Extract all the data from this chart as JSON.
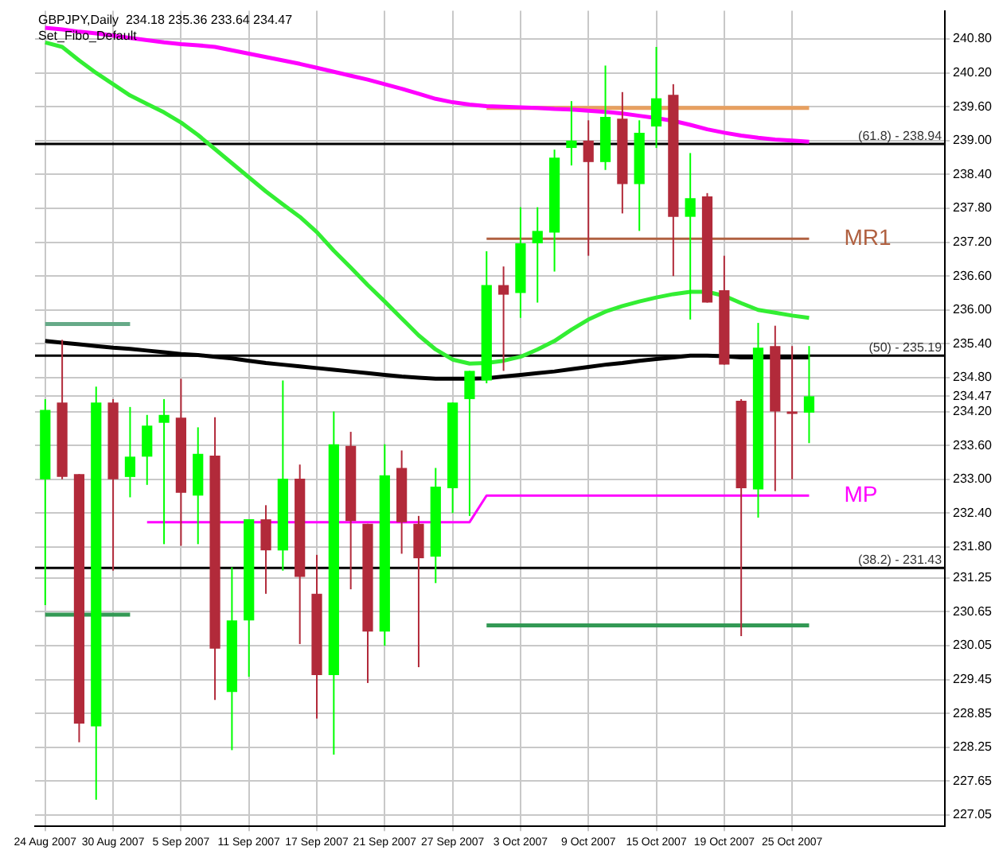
{
  "chart_data": {
    "type": "candlestick",
    "title": "GBPJPY,Daily  234.18 235.36 233.64 234.47",
    "subtitle": "Set_Fibo_Default",
    "categories": [
      "24 Aug 2007",
      null,
      null,
      null,
      "30 Aug 2007",
      null,
      null,
      null,
      "5 Sep 2007",
      null,
      null,
      null,
      "11 Sep 2007",
      null,
      null,
      null,
      "17 Sep 2007",
      null,
      null,
      null,
      "21 Sep 2007",
      null,
      null,
      null,
      "27 Sep 2007",
      null,
      null,
      null,
      "3 Oct 2007",
      null,
      null,
      null,
      "9 Oct 2007",
      null,
      null,
      null,
      "15 Oct 2007",
      null,
      null,
      null,
      "19 Oct 2007",
      null,
      null,
      null,
      "25 Oct 2007",
      null
    ],
    "ohlc": [
      [
        233.0,
        234.42,
        230.77,
        234.23
      ],
      [
        234.36,
        235.47,
        233.0,
        233.04
      ],
      [
        233.09,
        233.09,
        228.34,
        228.67
      ],
      [
        228.62,
        234.64,
        227.32,
        234.36
      ],
      [
        234.36,
        234.42,
        231.38,
        233.0
      ],
      [
        233.04,
        234.28,
        232.68,
        233.4
      ],
      [
        233.4,
        234.14,
        232.9,
        233.95
      ],
      [
        234.0,
        234.42,
        231.85,
        234.14
      ],
      [
        234.09,
        234.78,
        231.82,
        232.76
      ],
      [
        232.71,
        233.92,
        231.85,
        233.45
      ],
      [
        233.42,
        234.1,
        229.09,
        230.0
      ],
      [
        229.23,
        231.44,
        228.2,
        230.5
      ],
      [
        230.5,
        232.29,
        229.5,
        232.29
      ],
      [
        232.29,
        232.54,
        230.97,
        231.74
      ],
      [
        231.74,
        234.75,
        231.38,
        233.01
      ],
      [
        233.01,
        233.26,
        230.08,
        231.27
      ],
      [
        230.97,
        231.66,
        228.76,
        229.53
      ],
      [
        229.53,
        234.2,
        228.12,
        233.62
      ],
      [
        233.59,
        233.84,
        231.05,
        232.26
      ],
      [
        232.21,
        232.21,
        229.39,
        230.3
      ],
      [
        230.3,
        233.62,
        230.05,
        233.07
      ],
      [
        233.2,
        233.51,
        231.68,
        232.24
      ],
      [
        232.21,
        232.35,
        229.67,
        231.6
      ],
      [
        231.63,
        233.2,
        231.16,
        232.87
      ],
      [
        232.84,
        234.36,
        232.4,
        234.36
      ],
      [
        234.42,
        234.92,
        232.35,
        234.92
      ],
      [
        234.75,
        237.04,
        234.7,
        236.44
      ],
      [
        236.44,
        236.77,
        234.92,
        236.27
      ],
      [
        236.3,
        237.82,
        235.86,
        237.18
      ],
      [
        237.18,
        237.82,
        236.13,
        237.4
      ],
      [
        237.37,
        238.84,
        236.68,
        238.7
      ],
      [
        238.87,
        239.7,
        238.56,
        239.0
      ],
      [
        239.0,
        239.36,
        236.96,
        238.62
      ],
      [
        238.62,
        240.33,
        238.48,
        239.42
      ],
      [
        239.39,
        239.86,
        237.71,
        238.23
      ],
      [
        238.23,
        239.36,
        237.4,
        239.14
      ],
      [
        239.25,
        240.66,
        238.87,
        239.75
      ],
      [
        239.81,
        240.0,
        236.6,
        237.65
      ],
      [
        237.65,
        238.78,
        235.83,
        237.98
      ],
      [
        238.01,
        238.07,
        236.13,
        236.13
      ],
      [
        236.35,
        236.96,
        235.03,
        235.03
      ],
      [
        234.39,
        234.42,
        230.22,
        232.84
      ],
      [
        232.82,
        235.77,
        232.32,
        235.33
      ],
      [
        235.36,
        235.72,
        232.79,
        234.2
      ],
      [
        234.2,
        235.36,
        233.0,
        234.17
      ],
      [
        234.18,
        235.36,
        233.64,
        234.47
      ]
    ],
    "colors": [
      "#00ff00",
      "#b22a3a",
      "#b22a3a",
      "#00ff00",
      "#b22a3a",
      "#00ff00",
      "#00ff00",
      "#00ff00",
      "#b22a3a",
      "#00ff00",
      "#b22a3a",
      "#00ff00",
      "#00ff00",
      "#b22a3a",
      "#00ff00",
      "#b22a3a",
      "#b22a3a",
      "#00ff00",
      "#b22a3a",
      "#b22a3a",
      "#00ff00",
      "#b22a3a",
      "#b22a3a",
      "#00ff00",
      "#00ff00",
      "#00ff00",
      "#00ff00",
      "#b22a3a",
      "#00ff00",
      "#00ff00",
      "#00ff00",
      "#00ff00",
      "#b22a3a",
      "#00ff00",
      "#b22a3a",
      "#00ff00",
      "#00ff00",
      "#b22a3a",
      "#00ff00",
      "#b22a3a",
      "#b22a3a",
      "#b22a3a",
      "#00ff00",
      "#b22a3a",
      "#b22a3a",
      "#00ff00"
    ],
    "series": [
      {
        "type": "line",
        "color": "#ff00ff",
        "values": [
          241.0,
          240.97,
          240.93,
          240.9,
          240.86,
          240.82,
          240.78,
          240.74,
          240.71,
          240.69,
          240.66,
          240.6,
          240.54,
          240.48,
          240.42,
          240.36,
          240.29,
          240.22,
          240.15,
          240.08,
          240.0,
          239.92,
          239.83,
          239.74,
          239.68,
          239.64,
          239.61,
          239.6,
          239.59,
          239.58,
          239.56,
          239.55,
          239.53,
          239.51,
          239.48,
          239.44,
          239.4,
          239.35,
          239.28,
          239.2,
          239.14,
          239.09,
          239.05,
          239.02,
          239.0,
          238.98
        ]
      },
      {
        "type": "line",
        "color": "#33ee33",
        "values": [
          240.74,
          240.66,
          240.42,
          240.2,
          240.0,
          239.8,
          239.65,
          239.5,
          239.32,
          239.1,
          238.85,
          238.6,
          238.35,
          238.1,
          237.87,
          237.65,
          237.38,
          237.05,
          236.75,
          236.44,
          236.15,
          235.85,
          235.55,
          235.3,
          235.12,
          235.05,
          235.06,
          235.1,
          235.17,
          235.3,
          235.45,
          235.65,
          235.83,
          235.97,
          236.07,
          236.15,
          236.22,
          236.28,
          236.32,
          236.32,
          236.25,
          236.12,
          236.0,
          235.95,
          235.9,
          235.86
        ]
      },
      {
        "type": "line",
        "color": "#000000",
        "values": [
          235.45,
          235.42,
          235.39,
          235.36,
          235.33,
          235.31,
          235.28,
          235.25,
          235.22,
          235.2,
          235.17,
          235.14,
          235.1,
          235.06,
          235.03,
          235.0,
          234.97,
          234.94,
          234.91,
          234.88,
          234.85,
          234.82,
          234.8,
          234.78,
          234.78,
          234.78,
          234.79,
          234.82,
          234.85,
          234.88,
          234.91,
          234.95,
          234.99,
          235.03,
          235.06,
          235.1,
          235.13,
          235.16,
          235.19,
          235.19,
          235.18,
          235.16,
          235.16,
          235.16,
          235.16,
          235.16
        ]
      },
      {
        "type": "line",
        "color": "#e8a060",
        "values": [
          null,
          null,
          null,
          null,
          null,
          null,
          null,
          null,
          null,
          null,
          null,
          null,
          null,
          null,
          null,
          null,
          null,
          null,
          null,
          null,
          null,
          null,
          null,
          null,
          null,
          null,
          239.58,
          239.58,
          239.58,
          239.58,
          239.58,
          239.58,
          239.58,
          239.58,
          239.58,
          239.58,
          239.58,
          239.58,
          239.58,
          239.58,
          239.58,
          239.58,
          239.58,
          239.58,
          239.58,
          239.58
        ]
      },
      {
        "type": "line",
        "name": "MR1",
        "color": "#b06040",
        "values": [
          null,
          null,
          null,
          null,
          null,
          null,
          null,
          null,
          null,
          null,
          null,
          null,
          null,
          null,
          null,
          null,
          null,
          null,
          null,
          null,
          null,
          null,
          null,
          null,
          null,
          null,
          237.26,
          237.26,
          237.26,
          237.26,
          237.26,
          237.26,
          237.26,
          237.26,
          237.26,
          237.26,
          237.26,
          237.26,
          237.26,
          237.26,
          237.26,
          237.26,
          237.26,
          237.26,
          237.26,
          237.26
        ]
      },
      {
        "type": "line",
        "name": "MP",
        "color": "#ff00ff",
        "values": [
          null,
          null,
          null,
          null,
          null,
          null,
          232.24,
          232.24,
          232.24,
          232.24,
          232.24,
          232.24,
          232.24,
          232.24,
          232.24,
          232.24,
          232.24,
          232.24,
          232.24,
          232.24,
          232.24,
          232.24,
          232.24,
          232.24,
          232.24,
          232.24,
          232.71,
          232.71,
          232.71,
          232.71,
          232.71,
          232.71,
          232.71,
          232.71,
          232.71,
          232.71,
          232.71,
          232.71,
          232.71,
          232.71,
          232.71,
          232.71,
          232.71,
          232.71,
          232.71,
          232.71
        ]
      },
      {
        "type": "line",
        "color": "#66aa88",
        "values": [
          235.75,
          235.75,
          235.75,
          235.75,
          235.75,
          235.75,
          null,
          null,
          null,
          null,
          null,
          null,
          null,
          null,
          null,
          null,
          null,
          null,
          null,
          null,
          null,
          null,
          null,
          null,
          null,
          null,
          null,
          null,
          null,
          null,
          null,
          null,
          null,
          null,
          null,
          null,
          null,
          null,
          null,
          null,
          null,
          null,
          null,
          null,
          null,
          null
        ]
      },
      {
        "type": "line",
        "color": "#339955",
        "values": [
          230.6,
          230.6,
          230.6,
          230.6,
          230.6,
          230.6,
          null,
          null,
          null,
          null,
          null,
          null,
          null,
          null,
          null,
          null,
          null,
          null,
          null,
          null,
          null,
          null,
          null,
          null,
          null,
          null,
          230.41,
          230.41,
          230.41,
          230.41,
          230.41,
          230.41,
          230.41,
          230.41,
          230.41,
          230.41,
          230.41,
          230.41,
          230.41,
          230.41,
          230.41,
          230.41,
          230.41,
          230.41,
          230.41,
          230.41
        ]
      }
    ],
    "ref_lines": [
      {
        "axis": "y",
        "value": 238.94,
        "color": "#000000"
      },
      {
        "axis": "y",
        "value": 235.19,
        "color": "#000000"
      },
      {
        "axis": "y",
        "value": 231.43,
        "color": "#000000"
      }
    ],
    "annotations": [
      {
        "text": "(61.8) - 238.94",
        "y": 238.94
      },
      {
        "text": "(50) - 235.19",
        "y": 235.19
      },
      {
        "text": "(38.2) - 231.43",
        "y": 231.43
      }
    ],
    "ylim": [
      226.85,
      241.3
    ],
    "yticks": [
      {
        "value": 240.8,
        "label": "240.80"
      },
      {
        "value": 240.2,
        "label": "240.20"
      },
      {
        "value": 239.6,
        "label": "239.60"
      },
      {
        "value": 239.0,
        "label": "239.00"
      },
      {
        "value": 238.4,
        "label": "238.40"
      },
      {
        "value": 237.8,
        "label": "237.80"
      },
      {
        "value": 237.2,
        "label": "237.20"
      },
      {
        "value": 236.6,
        "label": "236.60"
      },
      {
        "value": 236.0,
        "label": "236.00"
      },
      {
        "value": 235.4,
        "label": "235.40"
      },
      {
        "value": 234.8,
        "label": "234.80"
      },
      234.47,
      {
        "value": 234.2,
        "label": "234.20"
      },
      {
        "value": 233.6,
        "label": "233.60"
      },
      {
        "value": 233.0,
        "label": "233.00"
      },
      {
        "value": 232.4,
        "label": "232.40"
      },
      {
        "value": 231.8,
        "label": "231.80"
      },
      231.25,
      230.65,
      230.05,
      229.45,
      228.85,
      228.25,
      227.65,
      227.05
    ],
    "grid": true,
    "legend": false
  }
}
